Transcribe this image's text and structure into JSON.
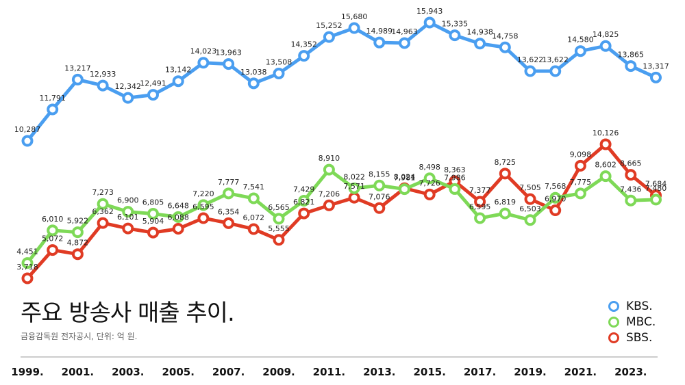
{
  "chart_data": {
    "type": "line",
    "title": "주요 방송사 매출 추이.",
    "source": "금융감독원 전자공시, 단위: 억 원.",
    "x": [
      1999,
      2000,
      2001,
      2002,
      2003,
      2004,
      2005,
      2006,
      2007,
      2008,
      2009,
      2010,
      2011,
      2012,
      2013,
      2014,
      2015,
      2016,
      2017,
      2018,
      2019,
      2020,
      2021,
      2022,
      2023,
      2024
    ],
    "x_tick_labels": [
      "1999.",
      "2001.",
      "2003.",
      "2005.",
      "2007.",
      "2009.",
      "2011.",
      "2013.",
      "2015.",
      "2017.",
      "2019.",
      "2021.",
      "2023."
    ],
    "x_tick_years": [
      1999,
      2001,
      2003,
      2005,
      2007,
      2009,
      2011,
      2013,
      2015,
      2017,
      2019,
      2021,
      2023
    ],
    "series": [
      {
        "name": "KBS.",
        "color": "#4a9ef0",
        "values": [
          10287,
          11791,
          13217,
          12933,
          12342,
          12491,
          13142,
          14023,
          13963,
          13038,
          13508,
          14352,
          15252,
          15680,
          14989,
          14963,
          15943,
          15335,
          14938,
          14758,
          13622,
          13622,
          14580,
          14825,
          13865,
          13317
        ]
      },
      {
        "name": "MBC.",
        "color": "#7ed957",
        "values": [
          4451,
          6010,
          5922,
          7273,
          6900,
          6805,
          6648,
          7220,
          7777,
          7541,
          6565,
          7429,
          8910,
          8022,
          8155,
          7981,
          8498,
          7986,
          6595,
          6819,
          6503,
          7568,
          7775,
          8602,
          7436,
          7480
        ]
      },
      {
        "name": "SBS.",
        "color": "#e03b24",
        "values": [
          3718,
          5072,
          4872,
          6362,
          6101,
          5904,
          6088,
          6595,
          6354,
          6072,
          5555,
          6821,
          7206,
          7571,
          7076,
          8024,
          7726,
          8363,
          7377,
          8725,
          7505,
          6970,
          9098,
          10126,
          8665,
          7684
        ]
      }
    ],
    "grid": false,
    "legend_position": "bottom-right"
  }
}
